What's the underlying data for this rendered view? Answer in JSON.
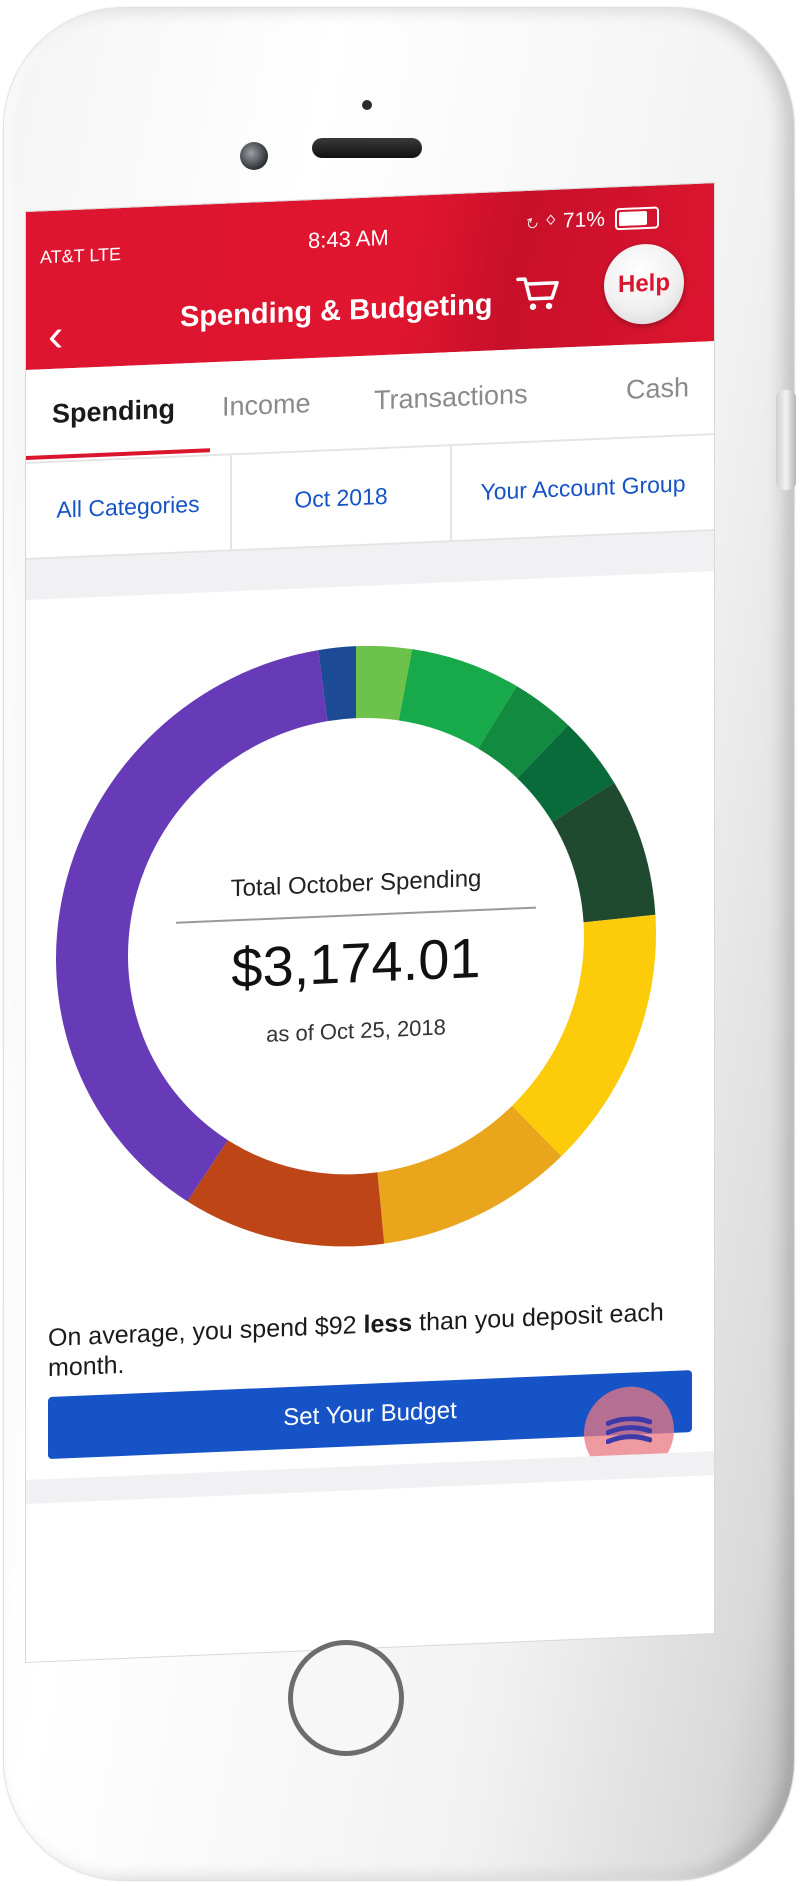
{
  "status_bar": {
    "carrier": "AT&T  LTE",
    "time": "8:43 AM",
    "battery": "71%"
  },
  "header": {
    "title": "Spending & Budgeting",
    "help_label": "Help",
    "back_icon": "chevron-left-icon",
    "cart_icon": "cart-icon"
  },
  "tabs": [
    {
      "label": "Spending",
      "active": true
    },
    {
      "label": "Income",
      "active": false
    },
    {
      "label": "Transactions",
      "active": false
    },
    {
      "label": "Cash",
      "active": false
    }
  ],
  "filters": {
    "category": "All Categories",
    "period": "Oct 2018",
    "account": "Your Account Group"
  },
  "chart_data": {
    "type": "pie",
    "title": "Total October Spending",
    "total": "$3,174.01",
    "as_of": "as of Oct 25, 2018",
    "slices": [
      {
        "fraction": 0.03,
        "color": "#6cc24a"
      },
      {
        "fraction": 0.06,
        "color": "#17a94a"
      },
      {
        "fraction": 0.035,
        "color": "#128a3f"
      },
      {
        "fraction": 0.04,
        "color": "#0a6b3a"
      },
      {
        "fraction": 0.075,
        "color": "#1f4a30"
      },
      {
        "fraction": 0.14,
        "color": "#fccb0a"
      },
      {
        "fraction": 0.105,
        "color": "#e9a61c"
      },
      {
        "fraction": 0.11,
        "color": "#be4616"
      },
      {
        "fraction": 0.385,
        "color": "#673ab7"
      },
      {
        "fraction": 0.02,
        "color": "#1c4a94"
      }
    ]
  },
  "summary": {
    "before": "On average, you spend $92 ",
    "emphasis": "less",
    "after": " than you deposit each month."
  },
  "budget_button_label": "Set Your Budget",
  "colors": {
    "brand_red": "#dd1530",
    "link_blue": "#1553c7"
  }
}
